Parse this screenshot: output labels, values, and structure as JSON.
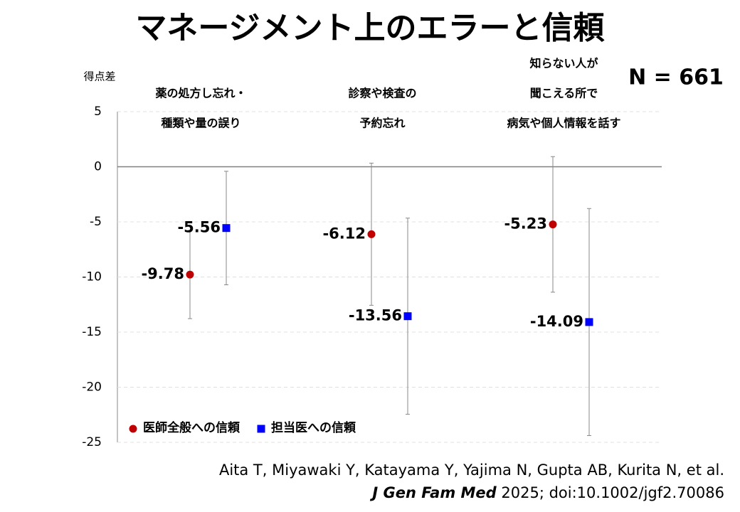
{
  "chart_data": {
    "type": "errorbar",
    "title": "マネージメント上のエラーと信頼",
    "y_label": "得点差",
    "annotation": "N = 661",
    "citation": {
      "line1": "Aita T, Miyawaki Y, Katayama Y, Yajima N, Gupta AB, Kurita N, et al.",
      "journal": "J Gen Fam Med",
      "rest": " 2025; doi:10.1002/jgf2.70086"
    },
    "categories": [
      [
        "薬の処方し忘れ・",
        "種類や量の誤り"
      ],
      [
        "診察や検査の",
        "予約忘れ"
      ],
      [
        "知らない人が",
        "聞こえる所で",
        "病気や個人情報を話す"
      ]
    ],
    "series": [
      {
        "name": "医師全般への信頼",
        "color": "#c00000",
        "marker": "circle",
        "values": [
          -9.78,
          -6.12,
          -5.23
        ],
        "errors": [
          4.0,
          6.45,
          6.15
        ]
      },
      {
        "name": "担当医への信頼",
        "color": "#0000ff",
        "marker": "square",
        "values": [
          -5.56,
          -13.56,
          -14.09
        ],
        "errors": [
          5.15,
          8.9,
          10.3
        ]
      }
    ],
    "ylim": [
      -25,
      5
    ],
    "yticks": [
      -25,
      -20,
      -15,
      -10,
      -5,
      0,
      5
    ],
    "grid": true,
    "legend": "lower-left"
  }
}
